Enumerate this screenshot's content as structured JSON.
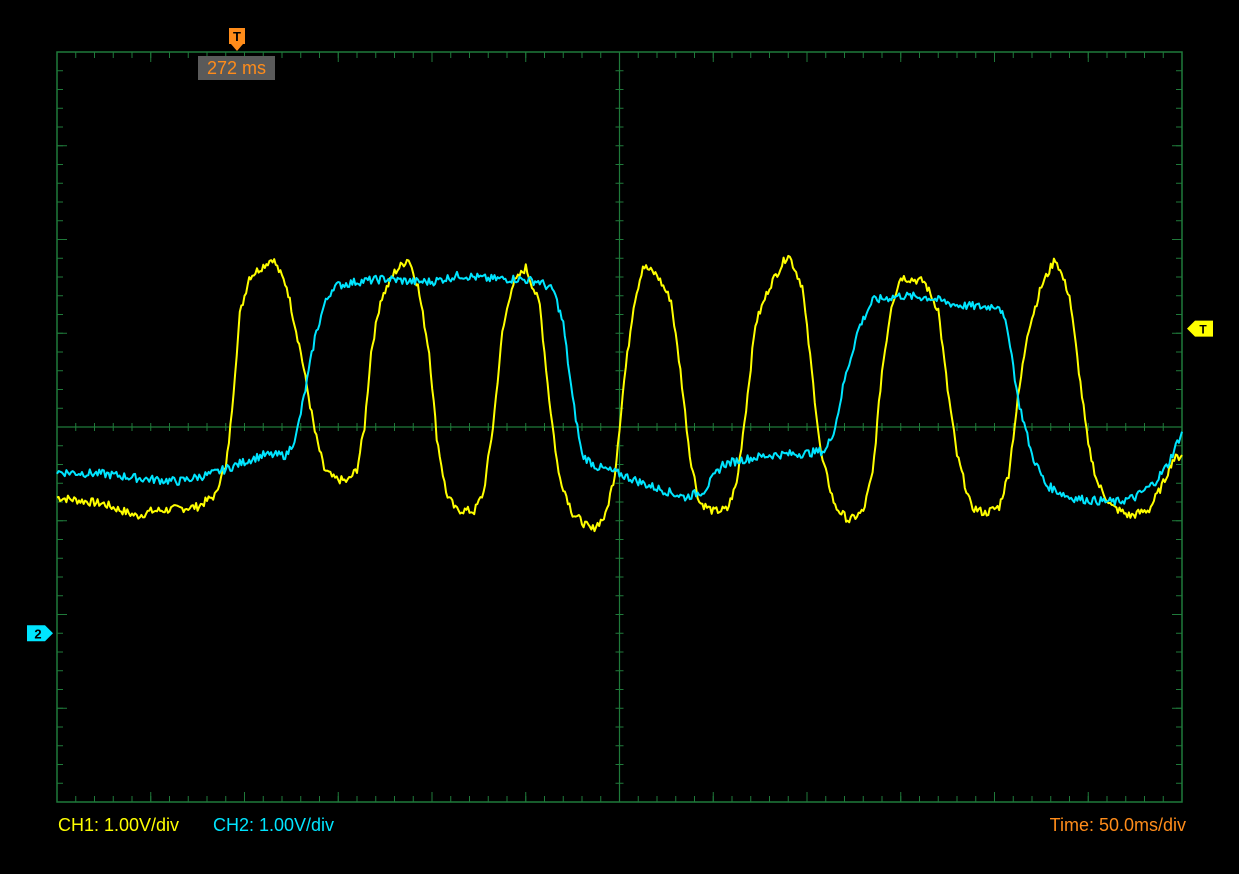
{
  "trigger": {
    "marker_label": "T",
    "time_label": "272 ms",
    "level_marker_label": "T"
  },
  "status": {
    "ch1": "CH1: 1.00V/div",
    "ch2": "CH2: 1.00V/div",
    "time": "Time: 50.0ms/div"
  },
  "colors": {
    "ch1": "#ffff00",
    "ch2": "#00e5ff",
    "trigger": "#ff8c1a",
    "grid": "#1f7a3a",
    "background": "#000000"
  },
  "chart_data": {
    "type": "line",
    "xlabel": "",
    "ylabel": "",
    "xlim": [
      0,
      12
    ],
    "ylim": [
      -4,
      4
    ],
    "x_unit_note": "divisions (50.0 ms/div)",
    "grid": true,
    "ch2_ground_marker": {
      "label": "2",
      "y": -2.2
    },
    "trigger_level_y": 1.05,
    "series": [
      {
        "key": "ch1",
        "color": "#ffff00",
        "points": [
          [
            0,
            -0.75
          ],
          [
            0.5,
            -0.82
          ],
          [
            0.85,
            -0.95
          ],
          [
            1.0,
            -0.9
          ],
          [
            1.5,
            -0.85
          ],
          [
            1.7,
            -0.72
          ],
          [
            1.75,
            -0.5
          ],
          [
            1.8,
            -0.45
          ],
          [
            1.85,
            0.0
          ],
          [
            1.95,
            1.2
          ],
          [
            2.05,
            1.6
          ],
          [
            2.3,
            1.8
          ],
          [
            2.45,
            1.5
          ],
          [
            2.6,
            0.8
          ],
          [
            2.75,
            -0.05
          ],
          [
            2.85,
            -0.45
          ],
          [
            2.95,
            -0.55
          ],
          [
            3.1,
            -0.58
          ],
          [
            3.2,
            -0.45
          ],
          [
            3.28,
            0.0
          ],
          [
            3.35,
            0.8
          ],
          [
            3.45,
            1.35
          ],
          [
            3.6,
            1.65
          ],
          [
            3.75,
            1.8
          ],
          [
            3.85,
            1.5
          ],
          [
            3.97,
            0.8
          ],
          [
            4.05,
            -0.1
          ],
          [
            4.15,
            -0.7
          ],
          [
            4.25,
            -0.88
          ],
          [
            4.45,
            -0.9
          ],
          [
            4.55,
            -0.7
          ],
          [
            4.65,
            0.0
          ],
          [
            4.75,
            1.0
          ],
          [
            4.85,
            1.5
          ],
          [
            5.0,
            1.7
          ],
          [
            5.15,
            1.3
          ],
          [
            5.25,
            0.3
          ],
          [
            5.35,
            -0.5
          ],
          [
            5.5,
            -0.92
          ],
          [
            5.7,
            -1.1
          ],
          [
            5.85,
            -0.95
          ],
          [
            5.95,
            -0.5
          ],
          [
            6.05,
            0.5
          ],
          [
            6.15,
            1.3
          ],
          [
            6.25,
            1.72
          ],
          [
            6.4,
            1.62
          ],
          [
            6.55,
            1.35
          ],
          [
            6.65,
            0.6
          ],
          [
            6.75,
            -0.3
          ],
          [
            6.85,
            -0.8
          ],
          [
            7.0,
            -0.9
          ],
          [
            7.15,
            -0.88
          ],
          [
            7.25,
            -0.6
          ],
          [
            7.35,
            0.2
          ],
          [
            7.45,
            1.1
          ],
          [
            7.6,
            1.5
          ],
          [
            7.8,
            1.85
          ],
          [
            7.95,
            1.5
          ],
          [
            8.05,
            0.6
          ],
          [
            8.15,
            -0.3
          ],
          [
            8.3,
            -0.85
          ],
          [
            8.45,
            -1.0
          ],
          [
            8.6,
            -0.9
          ],
          [
            8.7,
            -0.5
          ],
          [
            8.8,
            0.6
          ],
          [
            8.9,
            1.3
          ],
          [
            9.0,
            1.6
          ],
          [
            9.25,
            1.55
          ],
          [
            9.4,
            1.25
          ],
          [
            9.5,
            0.4
          ],
          [
            9.6,
            -0.3
          ],
          [
            9.75,
            -0.85
          ],
          [
            9.9,
            -0.92
          ],
          [
            10.05,
            -0.85
          ],
          [
            10.15,
            -0.5
          ],
          [
            10.25,
            0.3
          ],
          [
            10.35,
            1.0
          ],
          [
            10.5,
            1.5
          ],
          [
            10.65,
            1.8
          ],
          [
            10.8,
            1.4
          ],
          [
            10.9,
            0.6
          ],
          [
            11.0,
            -0.2
          ],
          [
            11.1,
            -0.6
          ],
          [
            11.25,
            -0.85
          ],
          [
            11.45,
            -0.95
          ],
          [
            11.65,
            -0.88
          ],
          [
            11.8,
            -0.6
          ],
          [
            11.9,
            -0.35
          ],
          [
            12.0,
            -0.3
          ]
        ]
      },
      {
        "key": "ch2",
        "color": "#00e5ff",
        "points": [
          [
            0,
            -0.48
          ],
          [
            0.5,
            -0.5
          ],
          [
            0.9,
            -0.55
          ],
          [
            1.3,
            -0.58
          ],
          [
            1.65,
            -0.5
          ],
          [
            1.8,
            -0.45
          ],
          [
            2.05,
            -0.35
          ],
          [
            2.2,
            -0.3
          ],
          [
            2.45,
            -0.3
          ],
          [
            2.55,
            -0.1
          ],
          [
            2.65,
            0.4
          ],
          [
            2.75,
            0.95
          ],
          [
            2.85,
            1.3
          ],
          [
            2.95,
            1.5
          ],
          [
            3.2,
            1.55
          ],
          [
            3.5,
            1.58
          ],
          [
            3.8,
            1.55
          ],
          [
            4.0,
            1.55
          ],
          [
            4.3,
            1.62
          ],
          [
            4.6,
            1.58
          ],
          [
            4.9,
            1.58
          ],
          [
            5.15,
            1.55
          ],
          [
            5.3,
            1.45
          ],
          [
            5.4,
            1.1
          ],
          [
            5.5,
            0.3
          ],
          [
            5.6,
            -0.3
          ],
          [
            5.75,
            -0.42
          ],
          [
            6.0,
            -0.5
          ],
          [
            6.3,
            -0.62
          ],
          [
            6.7,
            -0.75
          ],
          [
            6.9,
            -0.68
          ],
          [
            7.1,
            -0.4
          ],
          [
            7.3,
            -0.35
          ],
          [
            7.6,
            -0.3
          ],
          [
            8.0,
            -0.28
          ],
          [
            8.2,
            -0.25
          ],
          [
            8.3,
            0.0
          ],
          [
            8.4,
            0.5
          ],
          [
            8.55,
            1.05
          ],
          [
            8.7,
            1.35
          ],
          [
            9.0,
            1.4
          ],
          [
            9.3,
            1.38
          ],
          [
            9.6,
            1.3
          ],
          [
            9.9,
            1.28
          ],
          [
            10.05,
            1.3
          ],
          [
            10.15,
            1.0
          ],
          [
            10.25,
            0.3
          ],
          [
            10.4,
            -0.3
          ],
          [
            10.55,
            -0.62
          ],
          [
            10.8,
            -0.75
          ],
          [
            11.0,
            -0.78
          ],
          [
            11.3,
            -0.8
          ],
          [
            11.5,
            -0.75
          ],
          [
            11.7,
            -0.6
          ],
          [
            11.85,
            -0.4
          ],
          [
            12.0,
            -0.05
          ]
        ]
      }
    ]
  }
}
